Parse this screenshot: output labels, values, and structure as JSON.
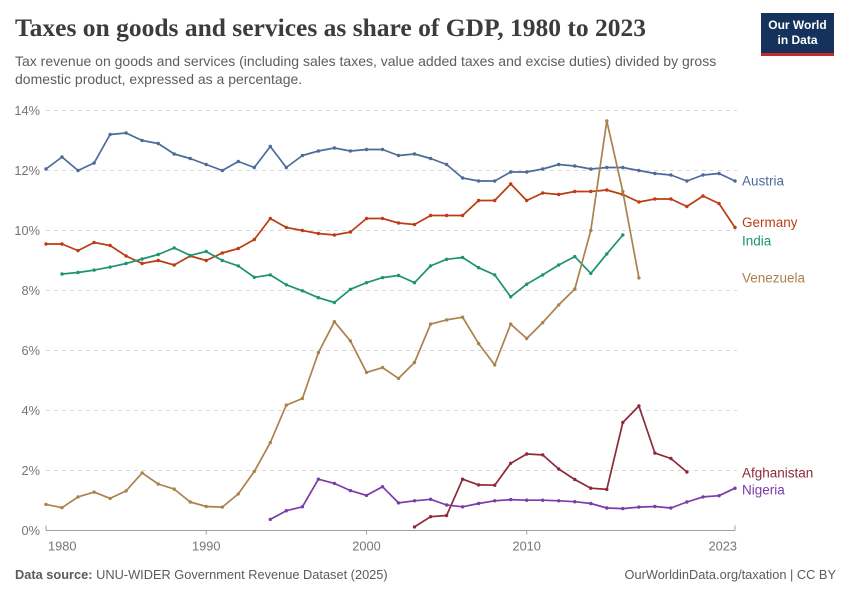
{
  "header": {
    "title": "Taxes on goods and services as share of GDP, 1980 to 2023",
    "subtitle": "Tax revenue on goods and services (including sales taxes, value added taxes and excise duties) divided by gross domestic product, expressed as a percentage.",
    "logo": {
      "line1": "Our World",
      "line2": "in Data",
      "bg": "#14325C",
      "accent": "#C5292A"
    }
  },
  "footer": {
    "source_label": "Data source:",
    "source_value": " UNU-WIDER Government Revenue Dataset (2025)",
    "right": "OurWorldinData.org/taxation | CC BY"
  },
  "chart_data": {
    "type": "line",
    "title": "Taxes on goods and services as share of GDP, 1980 to 2023",
    "x": {
      "min": 1980,
      "max": 2023,
      "ticks": [
        1980,
        1990,
        2000,
        2010,
        2023
      ]
    },
    "y": {
      "min": 0,
      "max": 14,
      "ticks": [
        0,
        2,
        4,
        6,
        8,
        10,
        12,
        14
      ],
      "suffix": "%"
    },
    "grid": true,
    "legend_position": "right-end-labels",
    "series": [
      {
        "name": "Austria",
        "color": "#4C6A9C",
        "start_year": 1980,
        "label_dy": 0,
        "values": [
          12.05,
          12.45,
          12.0,
          12.25,
          13.2,
          13.25,
          13.0,
          12.9,
          12.55,
          12.4,
          12.2,
          12.0,
          12.3,
          12.1,
          12.8,
          12.1,
          12.5,
          12.65,
          12.75,
          12.65,
          12.7,
          12.7,
          12.5,
          12.55,
          12.4,
          12.2,
          11.75,
          11.65,
          11.65,
          11.95,
          11.95,
          12.05,
          12.2,
          12.15,
          12.05,
          12.1,
          12.1,
          12.0,
          11.9,
          11.85,
          11.65,
          11.85,
          11.9,
          11.65
        ]
      },
      {
        "name": "Germany",
        "color": "#BC3C14",
        "start_year": 1980,
        "label_dy": -5,
        "values": [
          9.55,
          9.55,
          9.33,
          9.6,
          9.5,
          9.15,
          8.9,
          9.0,
          8.85,
          9.15,
          9.0,
          9.25,
          9.4,
          9.7,
          10.4,
          10.1,
          10.0,
          9.9,
          9.85,
          9.95,
          10.4,
          10.4,
          10.25,
          10.2,
          10.5,
          10.5,
          10.5,
          11.0,
          11.0,
          11.55,
          11.0,
          11.25,
          11.2,
          11.3,
          11.3,
          11.35,
          11.2,
          10.95,
          11.05,
          11.05,
          10.8,
          11.15,
          10.9,
          10.1
        ]
      },
      {
        "name": "India",
        "color": "#1D9370",
        "start_year": 1981,
        "label_dy": 6,
        "values": [
          8.55,
          8.6,
          8.68,
          8.78,
          8.9,
          9.05,
          9.2,
          9.42,
          9.17,
          9.3,
          9.0,
          8.82,
          8.44,
          8.52,
          8.19,
          7.99,
          7.76,
          7.6,
          8.04,
          8.26,
          8.43,
          8.5,
          8.26,
          8.82,
          9.04,
          9.1,
          8.76,
          8.52,
          7.79,
          8.21,
          8.52,
          8.85,
          9.13,
          8.57,
          9.22,
          9.85
        ]
      },
      {
        "name": "Venezuela",
        "color": "#AA824B",
        "start_year": 1980,
        "label_dy": 0,
        "values": [
          0.87,
          0.76,
          1.12,
          1.28,
          1.07,
          1.32,
          1.92,
          1.55,
          1.38,
          0.95,
          0.8,
          0.78,
          1.22,
          1.97,
          2.93,
          4.18,
          4.4,
          5.93,
          6.96,
          6.32,
          5.27,
          5.43,
          5.07,
          5.6,
          6.88,
          7.02,
          7.11,
          6.23,
          5.52,
          6.88,
          6.4,
          6.93,
          7.52,
          8.05,
          10.0,
          13.65,
          11.3,
          8.42
        ]
      },
      {
        "name": "Afghanistan",
        "color": "#8C2A39",
        "start_year": 2003,
        "label_dy": 1,
        "values": [
          0.12,
          0.46,
          0.5,
          1.71,
          1.52,
          1.51,
          2.24,
          2.55,
          2.52,
          2.05,
          1.7,
          1.41,
          1.37,
          3.6,
          4.15,
          2.58,
          2.4,
          1.95
        ]
      },
      {
        "name": "Nigeria",
        "color": "#7A3CA8",
        "start_year": 1994,
        "label_dy": 2,
        "values": [
          0.37,
          0.66,
          0.79,
          1.71,
          1.57,
          1.33,
          1.17,
          1.46,
          0.92,
          0.99,
          1.04,
          0.85,
          0.79,
          0.9,
          0.99,
          1.03,
          1.01,
          1.01,
          0.99,
          0.96,
          0.9,
          0.75,
          0.73,
          0.78,
          0.8,
          0.75,
          0.95,
          1.12,
          1.16,
          1.41
        ]
      }
    ]
  }
}
